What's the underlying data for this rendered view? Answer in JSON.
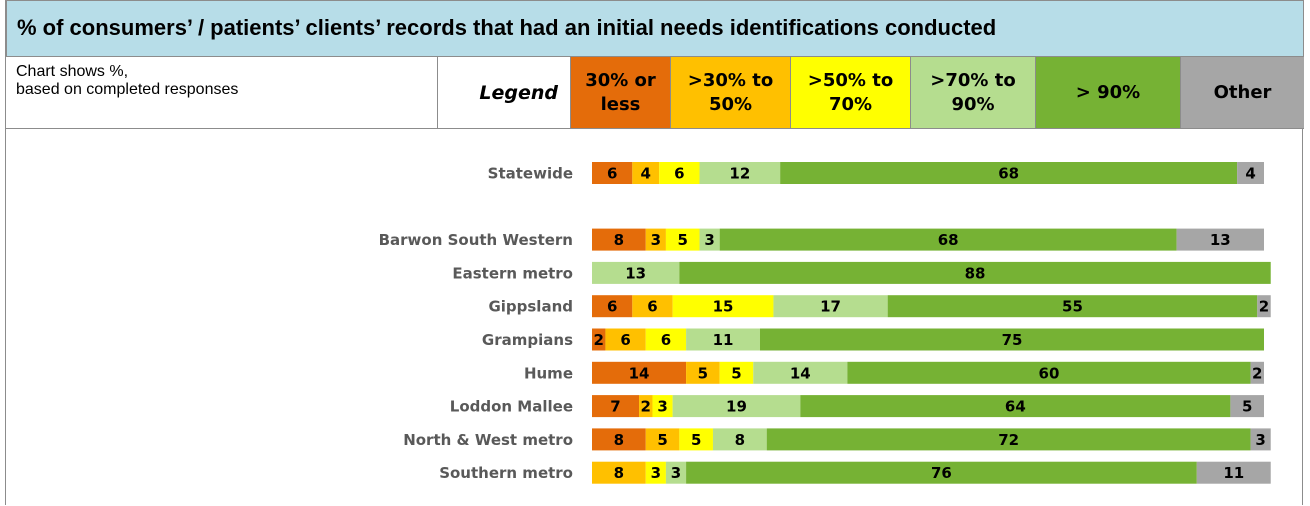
{
  "chart_data": {
    "type": "stacked-bar",
    "title": "% of consumers’ / patients’ clients’ records that had an initial needs identifications conducted",
    "subtitle": "Chart shows %,\nbased on completed responses",
    "legend_title": "Legend",
    "categories": [
      "Statewide",
      null,
      "Barwon South Western",
      "Eastern metro",
      "Gippsland",
      "Grampians",
      "Hume",
      "Loddon Mallee",
      "North & West metro",
      "Southern metro"
    ],
    "series": [
      {
        "name": "30% or less",
        "color": "#e46c0a",
        "values": [
          6,
          null,
          8,
          null,
          6,
          2,
          14,
          7,
          8,
          null
        ]
      },
      {
        "name": ">30% to 50%",
        "color": "#ffc000",
        "values": [
          4,
          null,
          3,
          null,
          6,
          6,
          5,
          2,
          5,
          8
        ]
      },
      {
        "name": ">50% to 70%",
        "color": "#ffff00",
        "values": [
          6,
          null,
          5,
          null,
          15,
          6,
          5,
          3,
          5,
          3
        ]
      },
      {
        "name": ">70% to 90%",
        "color": "#b5dd8f",
        "values": [
          12,
          null,
          3,
          13,
          17,
          11,
          14,
          19,
          8,
          3
        ]
      },
      {
        "name": "> 90%",
        "color": "#76b234",
        "values": [
          68,
          null,
          68,
          88,
          55,
          75,
          60,
          64,
          72,
          76
        ]
      },
      {
        "name": "Other",
        "color": "#a6a6a6",
        "values": [
          4,
          null,
          13,
          null,
          2,
          null,
          2,
          5,
          3,
          11
        ]
      }
    ],
    "xlim": [
      0,
      100
    ]
  }
}
